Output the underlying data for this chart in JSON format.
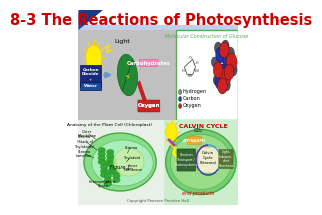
{
  "title": "8-3 The Reactions of Photosynthesis",
  "title_color": "#cc0000",
  "title_fontsize": 10.5,
  "bg_color": "#ffffff",
  "header_blue_dark": "#1a3a8a",
  "header_blue_light": "#4477cc",
  "top_panel_bg": "#c8c8c8",
  "mol_box_edge": "#5aaa5a",
  "mol_title": "Molecular Construction of Glucose",
  "mol_title_color": "#5aaa5a",
  "copyright": "Copyright Pearson Prentice Hall",
  "bottom_left_title": "Anatomy of the Plant Cell (Chloroplast)",
  "calvin_cycle_label": "CALVIN CYCLE",
  "end_products_label": "end products",
  "light_label": "Light",
  "carbohydrates_label": "Carbohydrates",
  "oxygen_label": "Oxygen",
  "carbon_box_text": "Carbon\nDioxide\n+\nWater",
  "figure_label": "Figure 1",
  "bl_labels": [
    [
      "Outer\nMembrane",
      14,
      7
    ],
    [
      "Stroma\n(Stack of\nThylakoids)",
      9,
      17
    ],
    [
      "Stroma\nLamellae",
      8,
      30
    ],
    [
      "Stroma",
      77,
      22
    ],
    [
      "Figure 1",
      52,
      38
    ],
    [
      "Thylakoid",
      72,
      46
    ],
    [
      "Inner\nMembrane",
      72,
      53
    ],
    [
      "Intermembrane\nSpace",
      38,
      63
    ]
  ],
  "hydrogen_label": "Hydrogen",
  "carbon_label": "Carbon",
  "oxygen_label2": "Oxygen",
  "h_color": "#888888",
  "c_color": "#2244bb",
  "o_color": "#cc2222"
}
